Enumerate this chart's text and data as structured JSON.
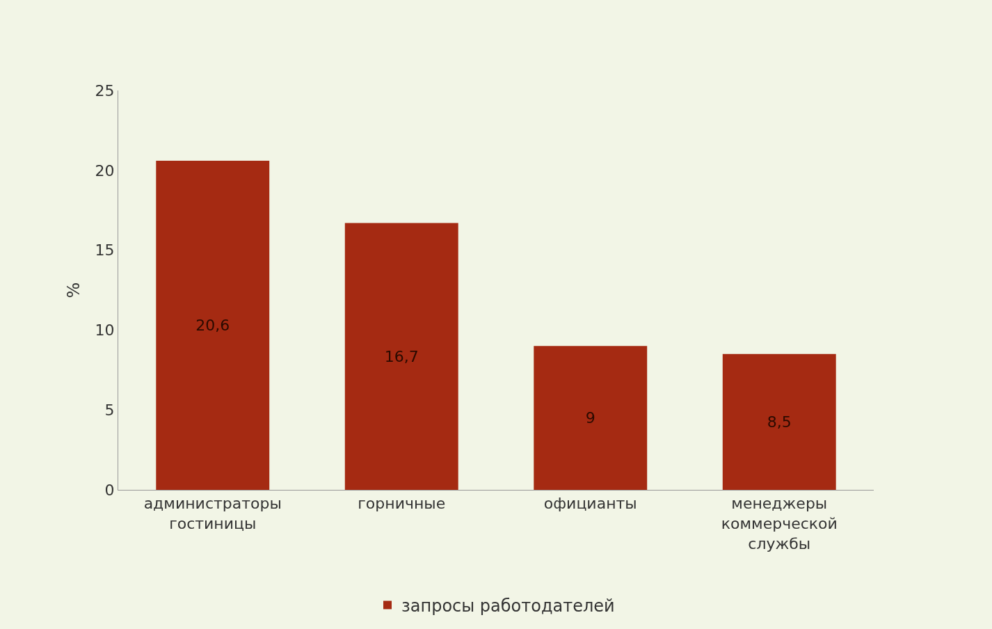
{
  "chart_data": {
    "type": "bar",
    "categories": [
      "администраторы гостиницы",
      "горничные",
      "официанты",
      "менеджеры коммерческой службы"
    ],
    "series": [
      {
        "name": "запросы работодателей",
        "color": "#a52a12",
        "values": [
          20.6,
          16.7,
          9,
          8.5
        ],
        "value_labels": [
          "20,6",
          "16,7",
          "9",
          "8,5"
        ]
      }
    ],
    "ylabel": "%",
    "ylim": [
      0,
      25
    ],
    "yticks": [
      0,
      5,
      10,
      15,
      20,
      25
    ],
    "grid": false,
    "legend": "bottom"
  }
}
